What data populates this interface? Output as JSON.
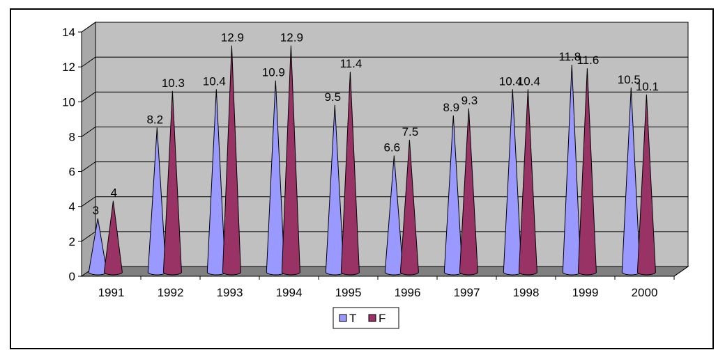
{
  "chart_data": {
    "type": "bar",
    "style": "3d-cone",
    "categories": [
      "1991",
      "1992",
      "1993",
      "1994",
      "1995",
      "1996",
      "1997",
      "1998",
      "1999",
      "2000"
    ],
    "series": [
      {
        "name": "T",
        "color": "#9999ff",
        "values": [
          3,
          8.2,
          10.4,
          10.9,
          9.5,
          6.6,
          8.9,
          10.4,
          11.8,
          10.5
        ]
      },
      {
        "name": "F",
        "color": "#993366",
        "values": [
          4,
          10.3,
          12.9,
          12.9,
          11.4,
          7.5,
          9.3,
          10.4,
          11.6,
          10.1
        ]
      }
    ],
    "yticks": [
      0,
      2,
      4,
      6,
      8,
      10,
      12,
      14
    ],
    "ylim": [
      0,
      14
    ],
    "grid": true,
    "wall_color": "#c0c0c0",
    "floor_color": "#808080",
    "legend_position": "bottom"
  }
}
